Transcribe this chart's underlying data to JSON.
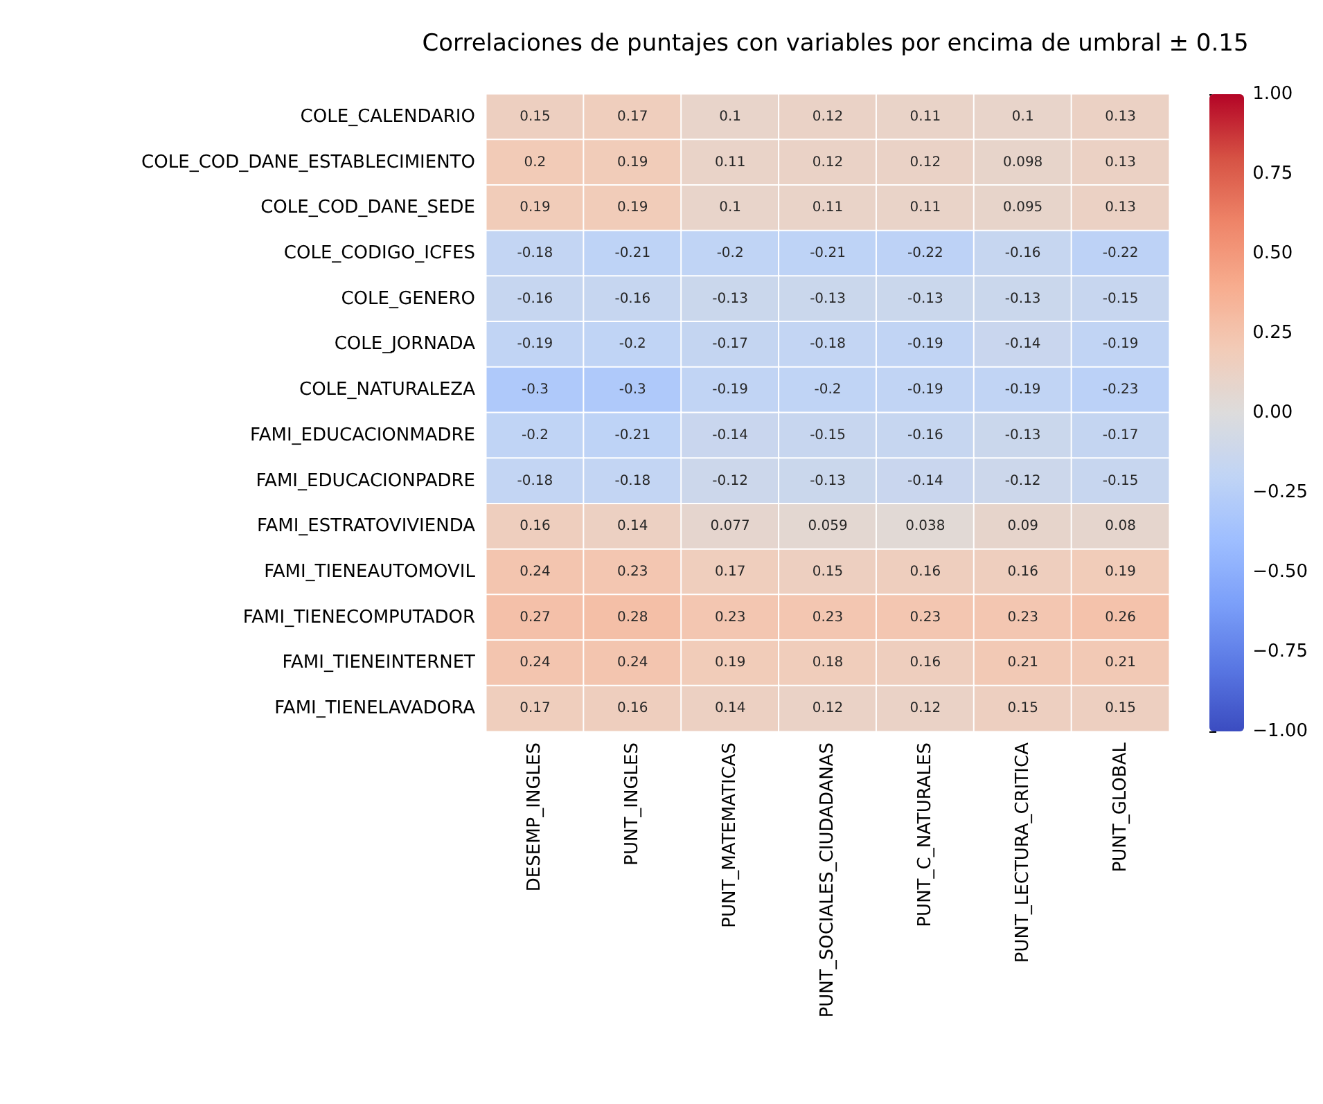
{
  "chart_data": {
    "type": "heatmap",
    "title": "Correlaciones de puntajes con variables por encima de umbral ± 0.15",
    "categories": [
      "DESEMP_INGLES",
      "PUNT_INGLES",
      "PUNT_MATEMATICAS",
      "PUNT_SOCIALES_CIUDADANAS",
      "PUNT_C_NATURALES",
      "PUNT_LECTURA_CRITICA",
      "PUNT_GLOBAL"
    ],
    "y_categories": [
      "COLE_CALENDARIO",
      "COLE_COD_DANE_ESTABLECIMIENTO",
      "COLE_COD_DANE_SEDE",
      "COLE_CODIGO_ICFES",
      "COLE_GENERO",
      "COLE_JORNADA",
      "COLE_NATURALEZA",
      "FAMI_EDUCACIONMADRE",
      "FAMI_EDUCACIONPADRE",
      "FAMI_ESTRATOVIVIENDA",
      "FAMI_TIENEAUTOMOVIL",
      "FAMI_TIENECOMPUTADOR",
      "FAMI_TIENEINTERNET",
      "FAMI_TIENELAVADORA"
    ],
    "cells": [
      [
        0.15,
        0.17,
        0.1,
        0.12,
        0.11,
        0.1,
        0.13
      ],
      [
        0.2,
        0.19,
        0.11,
        0.12,
        0.12,
        0.098,
        0.13
      ],
      [
        0.19,
        0.19,
        0.1,
        0.11,
        0.11,
        0.095,
        0.13
      ],
      [
        -0.18,
        -0.21,
        -0.2,
        -0.21,
        -0.22,
        -0.16,
        -0.22
      ],
      [
        -0.16,
        -0.16,
        -0.13,
        -0.13,
        -0.13,
        -0.13,
        -0.15
      ],
      [
        -0.19,
        -0.2,
        -0.17,
        -0.18,
        -0.19,
        -0.14,
        -0.19
      ],
      [
        -0.3,
        -0.3,
        -0.19,
        -0.2,
        -0.19,
        -0.19,
        -0.23
      ],
      [
        -0.2,
        -0.21,
        -0.14,
        -0.15,
        -0.16,
        -0.13,
        -0.17
      ],
      [
        -0.18,
        -0.18,
        -0.12,
        -0.13,
        -0.14,
        -0.12,
        -0.15
      ],
      [
        0.16,
        0.14,
        0.077,
        0.059,
        0.038,
        0.09,
        0.08
      ],
      [
        0.24,
        0.23,
        0.17,
        0.15,
        0.16,
        0.16,
        0.19
      ],
      [
        0.27,
        0.28,
        0.23,
        0.23,
        0.23,
        0.23,
        0.26
      ],
      [
        0.24,
        0.24,
        0.19,
        0.18,
        0.16,
        0.21,
        0.21
      ],
      [
        0.17,
        0.16,
        0.14,
        0.12,
        0.12,
        0.15,
        0.15
      ]
    ],
    "data_labels": true,
    "clim": [
      -1,
      1
    ],
    "cticks": [
      {
        "value": -1,
        "label": "−1.00"
      },
      {
        "value": -0.75,
        "label": "−0.75"
      },
      {
        "value": -0.5,
        "label": "−0.50"
      },
      {
        "value": -0.25,
        "label": "−0.25"
      },
      {
        "value": 0,
        "label": "0.00"
      },
      {
        "value": 0.25,
        "label": "0.25"
      },
      {
        "value": 0.5,
        "label": "0.50"
      },
      {
        "value": 0.75,
        "label": "0.75"
      },
      {
        "value": 1,
        "label": "1.00"
      }
    ]
  }
}
